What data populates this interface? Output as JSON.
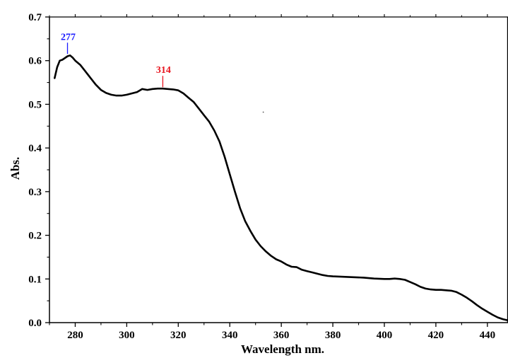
{
  "chart_data": {
    "type": "line",
    "xlabel": "Wavelength nm.",
    "ylabel": "Abs.",
    "xlim": [
      270,
      448
    ],
    "ylim": [
      0,
      0.7
    ],
    "x_ticks": [
      "280",
      "300",
      "320",
      "340",
      "360",
      "380",
      "400",
      "420",
      "440"
    ],
    "y_ticks": [
      "0.0",
      "0.1",
      "0.2",
      "0.3",
      "0.4",
      "0.5",
      "0.6",
      "0.7"
    ],
    "grid": false,
    "line_color": "#000000",
    "series": [
      {
        "x": [
          272,
          273,
          274,
          275,
          276,
          277,
          278,
          279,
          280,
          282,
          284,
          286,
          288,
          290,
          292,
          294,
          296,
          298,
          300,
          302,
          304,
          306,
          308,
          310,
          312,
          314,
          316,
          318,
          320,
          322,
          324,
          326,
          328,
          330,
          332,
          334,
          336,
          338,
          340,
          342,
          344,
          346,
          348,
          350,
          352,
          354,
          356,
          358,
          360,
          362,
          364,
          366,
          368,
          370,
          372,
          374,
          376,
          378,
          380,
          384,
          388,
          392,
          396,
          400,
          402,
          404,
          406,
          408,
          410,
          412,
          414,
          416,
          418,
          420,
          422,
          424,
          426,
          428,
          430,
          432,
          434,
          436,
          438,
          440,
          442,
          444,
          446,
          448
        ],
        "y": [
          0.56,
          0.585,
          0.6,
          0.602,
          0.606,
          0.61,
          0.612,
          0.607,
          0.6,
          0.59,
          0.575,
          0.56,
          0.545,
          0.533,
          0.526,
          0.522,
          0.52,
          0.52,
          0.522,
          0.525,
          0.528,
          0.535,
          0.533,
          0.535,
          0.536,
          0.536,
          0.535,
          0.534,
          0.532,
          0.525,
          0.515,
          0.505,
          0.49,
          0.475,
          0.46,
          0.44,
          0.415,
          0.38,
          0.34,
          0.3,
          0.262,
          0.232,
          0.21,
          0.19,
          0.175,
          0.163,
          0.153,
          0.145,
          0.14,
          0.133,
          0.128,
          0.127,
          0.121,
          0.118,
          0.115,
          0.112,
          0.109,
          0.107,
          0.106,
          0.105,
          0.104,
          0.103,
          0.101,
          0.1,
          0.1,
          0.101,
          0.1,
          0.098,
          0.093,
          0.088,
          0.082,
          0.078,
          0.076,
          0.075,
          0.075,
          0.074,
          0.073,
          0.07,
          0.064,
          0.057,
          0.049,
          0.04,
          0.032,
          0.025,
          0.018,
          0.012,
          0.008,
          0.005
        ]
      }
    ],
    "annotations": [
      {
        "text": "277",
        "x": 277,
        "y": 0.612,
        "color": "#1a1aff"
      },
      {
        "text": "314",
        "x": 314,
        "y": 0.536,
        "color": "#e8141e"
      }
    ],
    "stray_points": [
      {
        "x": 353,
        "y": 0.482
      }
    ]
  }
}
